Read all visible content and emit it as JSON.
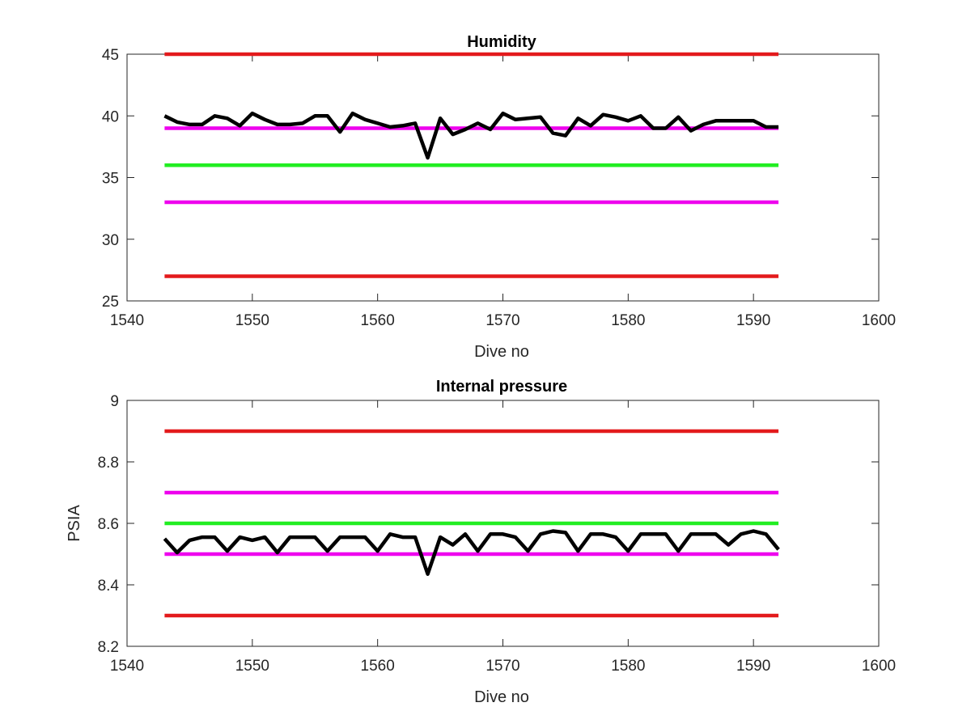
{
  "chart_data": [
    {
      "type": "line",
      "title": "Humidity",
      "xlabel": "Dive no",
      "ylabel": "",
      "xlim": [
        1540,
        1600
      ],
      "ylim": [
        25,
        45
      ],
      "xticks": [
        1540,
        1550,
        1560,
        1570,
        1580,
        1590,
        1600
      ],
      "yticks": [
        25,
        30,
        35,
        40,
        45
      ],
      "grid": false,
      "series": [
        {
          "color": "#000000",
          "style": "solid",
          "x": [
            1543,
            1544,
            1545,
            1546,
            1547,
            1548,
            1549,
            1550,
            1551,
            1552,
            1553,
            1554,
            1555,
            1556,
            1557,
            1558,
            1559,
            1560,
            1561,
            1562,
            1563,
            1564,
            1565,
            1566,
            1567,
            1568,
            1569,
            1570,
            1571,
            1572,
            1573,
            1574,
            1575,
            1576,
            1577,
            1578,
            1579,
            1580,
            1581,
            1582,
            1583,
            1584,
            1585,
            1586,
            1587,
            1588,
            1589,
            1590,
            1591,
            1592
          ],
          "values": [
            40.0,
            39.5,
            39.3,
            39.3,
            40.0,
            39.8,
            39.2,
            40.2,
            39.7,
            39.3,
            39.3,
            39.4,
            40.0,
            40.0,
            38.7,
            40.2,
            39.7,
            39.4,
            39.1,
            39.2,
            39.4,
            36.6,
            39.8,
            38.5,
            38.9,
            39.4,
            38.9,
            40.2,
            39.7,
            39.8,
            39.9,
            38.6,
            38.4,
            39.8,
            39.2,
            40.1,
            39.9,
            39.6,
            40.0,
            39.0,
            39.0,
            39.9,
            38.8,
            39.3,
            39.6,
            39.6,
            39.6,
            39.6,
            39.1,
            39.1
          ]
        },
        {
          "color": "#e31a1c",
          "style": "solid",
          "x": [
            1543,
            1592
          ],
          "values": [
            45,
            45
          ]
        },
        {
          "color": "#e31a1c",
          "style": "solid",
          "x": [
            1543,
            1592
          ],
          "values": [
            27,
            27
          ]
        },
        {
          "color": "#ee00ee",
          "style": "solid",
          "x": [
            1543,
            1592
          ],
          "values": [
            39,
            39
          ]
        },
        {
          "color": "#ee00ee",
          "style": "solid",
          "x": [
            1543,
            1592
          ],
          "values": [
            33,
            33
          ]
        },
        {
          "color": "#22ee22",
          "style": "solid",
          "x": [
            1543,
            1592
          ],
          "values": [
            36,
            36
          ]
        }
      ]
    },
    {
      "type": "line",
      "title": "Internal pressure",
      "xlabel": "Dive no",
      "ylabel": "PSIA",
      "xlim": [
        1540,
        1600
      ],
      "ylim": [
        8.2,
        9
      ],
      "xticks": [
        1540,
        1550,
        1560,
        1570,
        1580,
        1590,
        1600
      ],
      "yticks": [
        8.2,
        8.4,
        8.6,
        8.8,
        9
      ],
      "grid": false,
      "series": [
        {
          "color": "#000000",
          "style": "solid",
          "x": [
            1543,
            1544,
            1545,
            1546,
            1547,
            1548,
            1549,
            1550,
            1551,
            1552,
            1553,
            1554,
            1555,
            1556,
            1557,
            1558,
            1559,
            1560,
            1561,
            1562,
            1563,
            1564,
            1565,
            1566,
            1567,
            1568,
            1569,
            1570,
            1571,
            1572,
            1573,
            1574,
            1575,
            1576,
            1577,
            1578,
            1579,
            1580,
            1581,
            1582,
            1583,
            1584,
            1585,
            1586,
            1587,
            1588,
            1589,
            1590,
            1591,
            1592
          ],
          "values": [
            8.55,
            8.505,
            8.545,
            8.555,
            8.555,
            8.51,
            8.555,
            8.545,
            8.555,
            8.505,
            8.555,
            8.555,
            8.555,
            8.51,
            8.555,
            8.555,
            8.555,
            8.51,
            8.565,
            8.555,
            8.555,
            8.435,
            8.555,
            8.53,
            8.565,
            8.51,
            8.565,
            8.565,
            8.555,
            8.51,
            8.565,
            8.575,
            8.57,
            8.51,
            8.565,
            8.565,
            8.555,
            8.51,
            8.565,
            8.565,
            8.565,
            8.51,
            8.565,
            8.565,
            8.565,
            8.53,
            8.565,
            8.575,
            8.565,
            8.515
          ]
        },
        {
          "color": "#e31a1c",
          "style": "solid",
          "x": [
            1543,
            1592
          ],
          "values": [
            8.9,
            8.9
          ]
        },
        {
          "color": "#e31a1c",
          "style": "solid",
          "x": [
            1543,
            1592
          ],
          "values": [
            8.3,
            8.3
          ]
        },
        {
          "color": "#ee00ee",
          "style": "solid",
          "x": [
            1543,
            1592
          ],
          "values": [
            8.7,
            8.7
          ]
        },
        {
          "color": "#ee00ee",
          "style": "solid",
          "x": [
            1543,
            1592
          ],
          "values": [
            8.5,
            8.5
          ]
        },
        {
          "color": "#22ee22",
          "style": "solid",
          "x": [
            1543,
            1592
          ],
          "values": [
            8.6,
            8.6
          ]
        }
      ]
    }
  ]
}
